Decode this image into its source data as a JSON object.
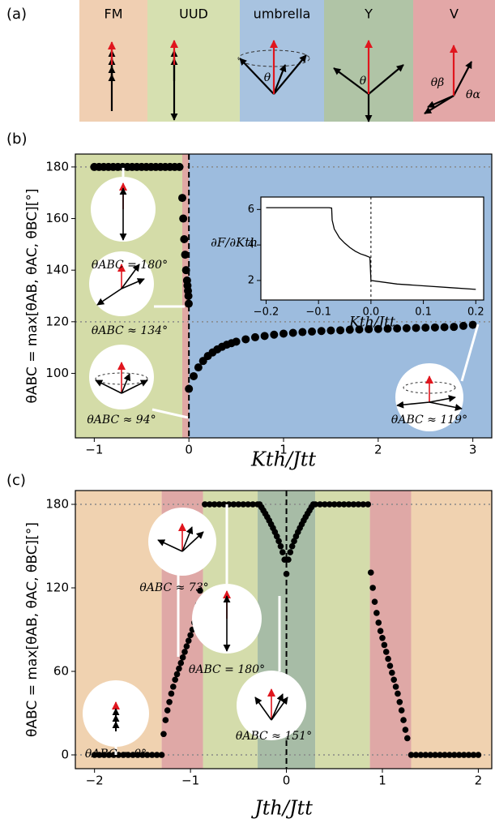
{
  "panel_a": {
    "label": "(a)",
    "phases": [
      {
        "name": "FM",
        "color": "#f0cfb2"
      },
      {
        "name": "UUD",
        "color": "#d6e0b0"
      },
      {
        "name": "umbrella",
        "color": "#a8c3e0"
      },
      {
        "name": "Y",
        "color": "#b0c4a6"
      },
      {
        "name": "V",
        "color": "#e3a7a7"
      }
    ],
    "angle_labels": [
      "θ",
      "θ",
      "θβ",
      "θα"
    ]
  },
  "chart_data": [
    {
      "type": "scatter",
      "panel_label": "(b)",
      "xlabel": "Kth/Jtt",
      "ylabel": "θABC = max[θAB, θAC, θBC][°]",
      "xlim": [
        -1.2,
        3.2
      ],
      "ylim": [
        75,
        185
      ],
      "xticks": [
        {
          "value": -1,
          "label": "−1"
        },
        0,
        1,
        2,
        3
      ],
      "yticks": [
        100,
        120,
        140,
        160,
        180
      ],
      "hlines": [
        180,
        120
      ],
      "vlines": [
        0
      ],
      "regions": [
        {
          "from": -1.2,
          "to": -0.07,
          "color": "#d4dca8"
        },
        {
          "from": -0.07,
          "to": 0,
          "color": "#e0a8a4"
        },
        {
          "from": 0,
          "to": 3.2,
          "color": "#9dbcde"
        }
      ],
      "series": [
        {
          "color": "#000000",
          "x": [
            -1,
            -0.95,
            -0.9,
            -0.85,
            -0.8,
            -0.75,
            -0.7,
            -0.65,
            -0.6,
            -0.55,
            -0.5,
            -0.45,
            -0.4,
            -0.35,
            -0.3,
            -0.25,
            -0.2,
            -0.15,
            -0.1
          ],
          "values": [
            180,
            180,
            180,
            180,
            180,
            180,
            180,
            180,
            180,
            180,
            180,
            180,
            180,
            180,
            180,
            180,
            180,
            180,
            180
          ]
        },
        {
          "color": "#000000",
          "x": [
            -0.07,
            -0.06,
            -0.05,
            -0.04,
            -0.03,
            -0.02,
            -0.015,
            -0.01,
            -0.005,
            -0.002
          ],
          "values": [
            168,
            160,
            152,
            146,
            140,
            136,
            134,
            132,
            130,
            127
          ]
        },
        {
          "color": "#000000",
          "x": [
            0,
            0.05,
            0.1,
            0.15,
            0.2,
            0.25,
            0.3,
            0.35,
            0.4,
            0.45,
            0.5,
            0.6,
            0.7,
            0.8,
            0.9,
            1.0,
            1.1,
            1.2,
            1.3,
            1.4,
            1.5,
            1.6,
            1.7,
            1.8,
            1.9,
            2.0,
            2.1,
            2.2,
            2.3,
            2.4,
            2.5,
            2.6,
            2.7,
            2.8,
            2.9,
            3.0
          ],
          "values": [
            94,
            98.9,
            102.3,
            104.8,
            106.7,
            108.1,
            109.3,
            110.3,
            111.1,
            111.7,
            112.3,
            113.2,
            114,
            114.5,
            115,
            115.4,
            115.7,
            116,
            116.2,
            116.4,
            116.6,
            116.7,
            116.9,
            117,
            117.1,
            117.2,
            117.3,
            117.4,
            117.5,
            117.6,
            117.7,
            117.8,
            117.9,
            118,
            118.4,
            118.8
          ]
        }
      ],
      "annotations": [
        "θABC = 180°",
        "θABC ≈ 134°",
        "θABC ≈ 94°",
        "θABC ≈ 119°"
      ]
    },
    {
      "type": "line",
      "xlabel": "Kth/Jtt",
      "ylabel": "∂F/∂Kth",
      "xlim": [
        -0.21,
        0.215
      ],
      "ylim": [
        0.9,
        6.7
      ],
      "xticks": [
        {
          "value": -0.2,
          "label": "−0.2"
        },
        {
          "value": -0.1,
          "label": "−0.1"
        },
        {
          "value": 0,
          "label": "0.0"
        },
        0.1,
        0.2
      ],
      "yticks": [
        2,
        4,
        6
      ],
      "vlines": [
        0
      ],
      "series": [
        {
          "color": "#000000",
          "x": [
            -0.2,
            -0.15,
            -0.1,
            -0.08,
            -0.075,
            -0.074,
            -0.07,
            -0.06,
            -0.05,
            -0.04,
            -0.03,
            -0.02,
            -0.01,
            -0.002,
            0,
            0.05,
            0.1,
            0.15,
            0.2
          ],
          "values": [
            6.1,
            6.1,
            6.1,
            6.1,
            6.08,
            5.4,
            4.9,
            4.4,
            4.1,
            3.85,
            3.65,
            3.5,
            3.4,
            3.3,
            2.0,
            1.8,
            1.7,
            1.6,
            1.5
          ]
        }
      ]
    },
    {
      "type": "scatter",
      "panel_label": "(c)",
      "xlabel": "Jth/Jtt",
      "ylabel": "θABC = max[θAB, θAC, θBC][°]",
      "xlim": [
        -2.2,
        2.14
      ],
      "ylim": [
        -9.9,
        189.9
      ],
      "xticks": [
        {
          "value": -2,
          "label": "−2"
        },
        {
          "value": -1,
          "label": "−1"
        },
        0,
        1,
        2
      ],
      "yticks": [
        0,
        60,
        120,
        180
      ],
      "hlines": [
        180,
        0
      ],
      "vlines": [
        0
      ],
      "regions": [
        {
          "from": -2.2,
          "to": -1.3,
          "color": "#f0d2b0"
        },
        {
          "from": -1.3,
          "to": -0.87,
          "color": "#dfa8a6"
        },
        {
          "from": -0.87,
          "to": -0.3,
          "color": "#d4dcab"
        },
        {
          "from": -0.3,
          "to": 0.3,
          "color": "#a7bca6"
        },
        {
          "from": 0.3,
          "to": 0.87,
          "color": "#d4dcab"
        },
        {
          "from": 0.87,
          "to": 1.3,
          "color": "#dfa8a6"
        },
        {
          "from": 1.3,
          "to": 2.14,
          "color": "#f0d2b0"
        }
      ],
      "series": [
        {
          "color": "#000000",
          "x": [
            -2,
            -1.95,
            -1.9,
            -1.85,
            -1.8,
            -1.75,
            -1.7,
            -1.65,
            -1.6,
            -1.55,
            -1.5,
            -1.45,
            -1.4,
            -1.35,
            -1.3
          ],
          "values": [
            0,
            0,
            0,
            0,
            0,
            0,
            0,
            0,
            0,
            0,
            0,
            0,
            0,
            0,
            0
          ]
        },
        {
          "color": "#000000",
          "x": [
            -1.28,
            -1.26,
            -1.24,
            -1.22,
            -1.2,
            -1.18,
            -1.16,
            -1.14,
            -1.12,
            -1.1,
            -1.08,
            -1.06,
            -1.04,
            -1.02,
            -1,
            -0.98,
            -0.96,
            -0.94,
            -0.92,
            -0.9
          ],
          "values": [
            15,
            25,
            32,
            38,
            44,
            49,
            54,
            58,
            62,
            66,
            70,
            74,
            78,
            82,
            86,
            90,
            95,
            101,
            108,
            118
          ]
        },
        {
          "color": "#000000",
          "x": [
            -0.85,
            -0.8,
            -0.75,
            -0.7,
            -0.65,
            -0.6,
            -0.55,
            -0.5,
            -0.45,
            -0.4,
            -0.35,
            -0.3
          ],
          "values": [
            180,
            180,
            180,
            180,
            180,
            180,
            180,
            180,
            180,
            180,
            180,
            180
          ]
        },
        {
          "color": "#000000",
          "x": [
            -0.28,
            -0.26,
            -0.24,
            -0.22,
            -0.2,
            -0.18,
            -0.16,
            -0.14,
            -0.12,
            -0.1,
            -0.08,
            -0.06,
            -0.04,
            -0.02,
            0,
            0.02,
            0.04,
            0.06,
            0.08,
            0.1,
            0.12,
            0.14,
            0.16,
            0.18,
            0.2,
            0.22,
            0.24,
            0.26,
            0.28
          ],
          "values": [
            180,
            177.9,
            175.6,
            173.3,
            170.9,
            168.4,
            165.7,
            163,
            160.1,
            157,
            153.6,
            149.9,
            145.6,
            140.3,
            130,
            140.3,
            145.6,
            149.9,
            153.6,
            157,
            160.1,
            163,
            165.7,
            168.4,
            170.9,
            173.3,
            175.6,
            177.9,
            180
          ]
        },
        {
          "color": "#000000",
          "x": [
            0.3,
            0.35,
            0.4,
            0.45,
            0.5,
            0.55,
            0.6,
            0.65,
            0.7,
            0.75,
            0.8,
            0.85
          ],
          "values": [
            180,
            180,
            180,
            180,
            180,
            180,
            180,
            180,
            180,
            180,
            180,
            180
          ]
        },
        {
          "color": "#000000",
          "x": [
            0.88,
            0.9,
            0.92,
            0.94,
            0.96,
            0.98,
            1,
            1.02,
            1.04,
            1.06,
            1.08,
            1.1,
            1.12,
            1.14,
            1.16,
            1.18,
            1.2,
            1.22,
            1.24,
            1.26
          ],
          "values": [
            131,
            120,
            110,
            102,
            95,
            89,
            84,
            79,
            74,
            69,
            64,
            59,
            54,
            49,
            44,
            38,
            32,
            25,
            18,
            12
          ]
        },
        {
          "color": "#000000",
          "x": [
            1.3,
            1.35,
            1.4,
            1.45,
            1.5,
            1.55,
            1.6,
            1.65,
            1.7,
            1.75,
            1.8,
            1.85,
            1.9,
            1.95,
            2
          ],
          "values": [
            0,
            0,
            0,
            0,
            0,
            0,
            0,
            0,
            0,
            0,
            0,
            0,
            0,
            0,
            0
          ]
        }
      ],
      "annotations": [
        "θABC ≈ 73°",
        "θABC = 180°",
        "θABC = 0°",
        "θABC ≈ 151°"
      ]
    }
  ]
}
